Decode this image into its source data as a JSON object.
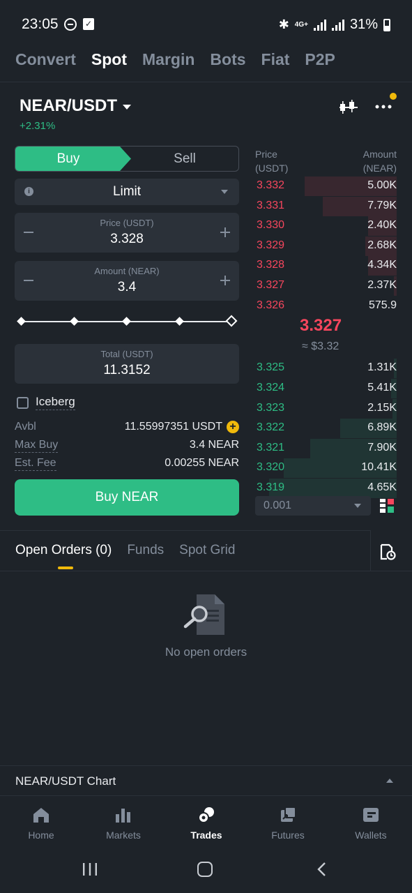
{
  "status_bar": {
    "time": "23:05",
    "network": "4G+",
    "battery": "31%"
  },
  "top_tabs": [
    "Convert",
    "Spot",
    "Margin",
    "Bots",
    "Fiat",
    "P2P"
  ],
  "active_top_tab": "Spot",
  "pair": {
    "symbol": "NEAR/USDT",
    "change": "+2.31%"
  },
  "order_form": {
    "buy_label": "Buy",
    "sell_label": "Sell",
    "order_type": "Limit",
    "price_label": "Price (USDT)",
    "price_value": "3.328",
    "amount_label": "Amount (NEAR)",
    "amount_value": "3.4",
    "slider_percent": 100,
    "total_label": "Total (USDT)",
    "total_value": "11.3152",
    "iceberg_label": "Iceberg",
    "iceberg_checked": false,
    "avbl_label": "Avbl",
    "avbl_value": "11.55997351 USDT",
    "max_buy_label": "Max Buy",
    "max_buy_value": "3.4 NEAR",
    "est_fee_label": "Est. Fee",
    "est_fee_value": "0.00255 NEAR",
    "submit_label": "Buy NEAR"
  },
  "order_book": {
    "price_header_1": "Price",
    "price_header_2": "(USDT)",
    "amount_header_1": "Amount",
    "amount_header_2": "(NEAR)",
    "asks": [
      {
        "price": "3.332",
        "amount": "5.00K",
        "depth": 0.65
      },
      {
        "price": "3.331",
        "amount": "7.79K",
        "depth": 0.52
      },
      {
        "price": "3.330",
        "amount": "2.40K",
        "depth": 0.2
      },
      {
        "price": "3.329",
        "amount": "2.68K",
        "depth": 0.22
      },
      {
        "price": "3.328",
        "amount": "4.34K",
        "depth": 0.2
      },
      {
        "price": "3.327",
        "amount": "2.37K",
        "depth": 0.02
      },
      {
        "price": "3.326",
        "amount": "575.9",
        "depth": 0.0
      }
    ],
    "last_price": "3.327",
    "last_price_usd": "≈ $3.32",
    "bids": [
      {
        "price": "3.325",
        "amount": "1.31K",
        "depth": 0.02
      },
      {
        "price": "3.324",
        "amount": "5.41K",
        "depth": 0.04
      },
      {
        "price": "3.323",
        "amount": "2.15K",
        "depth": 0.03
      },
      {
        "price": "3.322",
        "amount": "6.89K",
        "depth": 0.4
      },
      {
        "price": "3.321",
        "amount": "7.90K",
        "depth": 0.61
      },
      {
        "price": "3.320",
        "amount": "10.41K",
        "depth": 0.8
      },
      {
        "price": "3.319",
        "amount": "4.65K",
        "depth": 0.9
      }
    ],
    "step": "0.001"
  },
  "orders": {
    "tabs": [
      "Open Orders (0)",
      "Funds",
      "Spot Grid"
    ],
    "empty_text": "No open orders"
  },
  "chart_bar": {
    "label": "NEAR/USDT Chart"
  },
  "bottom_nav": [
    {
      "label": "Home",
      "icon": "home-icon"
    },
    {
      "label": "Markets",
      "icon": "markets-icon"
    },
    {
      "label": "Trades",
      "icon": "trades-icon",
      "active": true
    },
    {
      "label": "Futures",
      "icon": "futures-icon"
    },
    {
      "label": "Wallets",
      "icon": "wallet-icon"
    }
  ],
  "colors": {
    "background": "#1e2329",
    "buy_green": "#2ebd85",
    "sell_red": "#f6465d",
    "accent_yellow": "#f0b90b"
  }
}
